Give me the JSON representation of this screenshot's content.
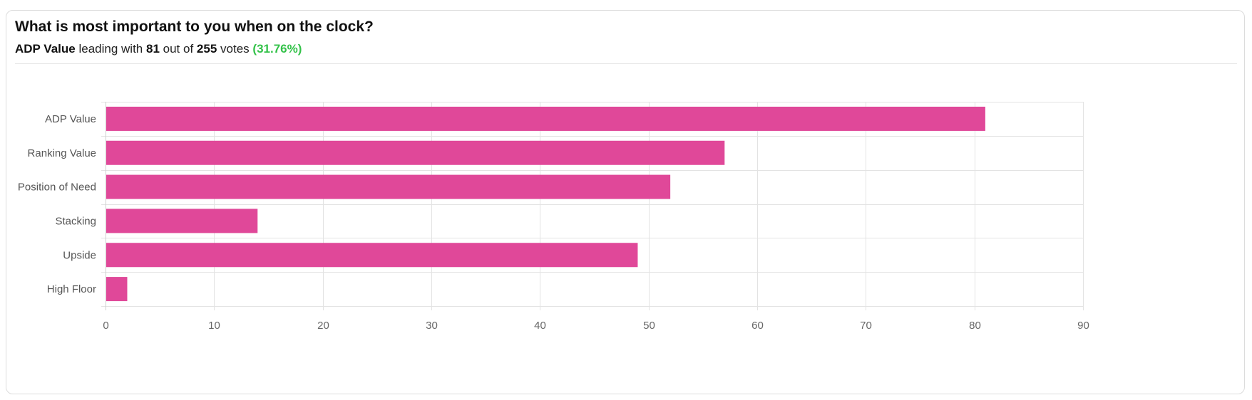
{
  "header": {
    "title": "What is most important to you when on the clock?",
    "leader_name": "ADP Value",
    "leader_text_1": "leading with",
    "leader_votes": "81",
    "leader_text_2": "out of",
    "total_votes": "255",
    "leader_text_3": "votes",
    "leader_percent": "(31.76%)"
  },
  "colors": {
    "bar": "#e04899",
    "grid": "#e3e3e3",
    "percent": "#34c24a"
  },
  "chart_data": {
    "type": "bar",
    "orientation": "horizontal",
    "categories": [
      "ADP Value",
      "Ranking Value",
      "Position of Need",
      "Stacking",
      "Upside",
      "High Floor"
    ],
    "values": [
      81,
      57,
      52,
      14,
      49,
      2
    ],
    "xlim": [
      0,
      90
    ],
    "xticks": [
      0,
      10,
      20,
      30,
      40,
      50,
      60,
      70,
      80,
      90
    ],
    "grid": true
  }
}
